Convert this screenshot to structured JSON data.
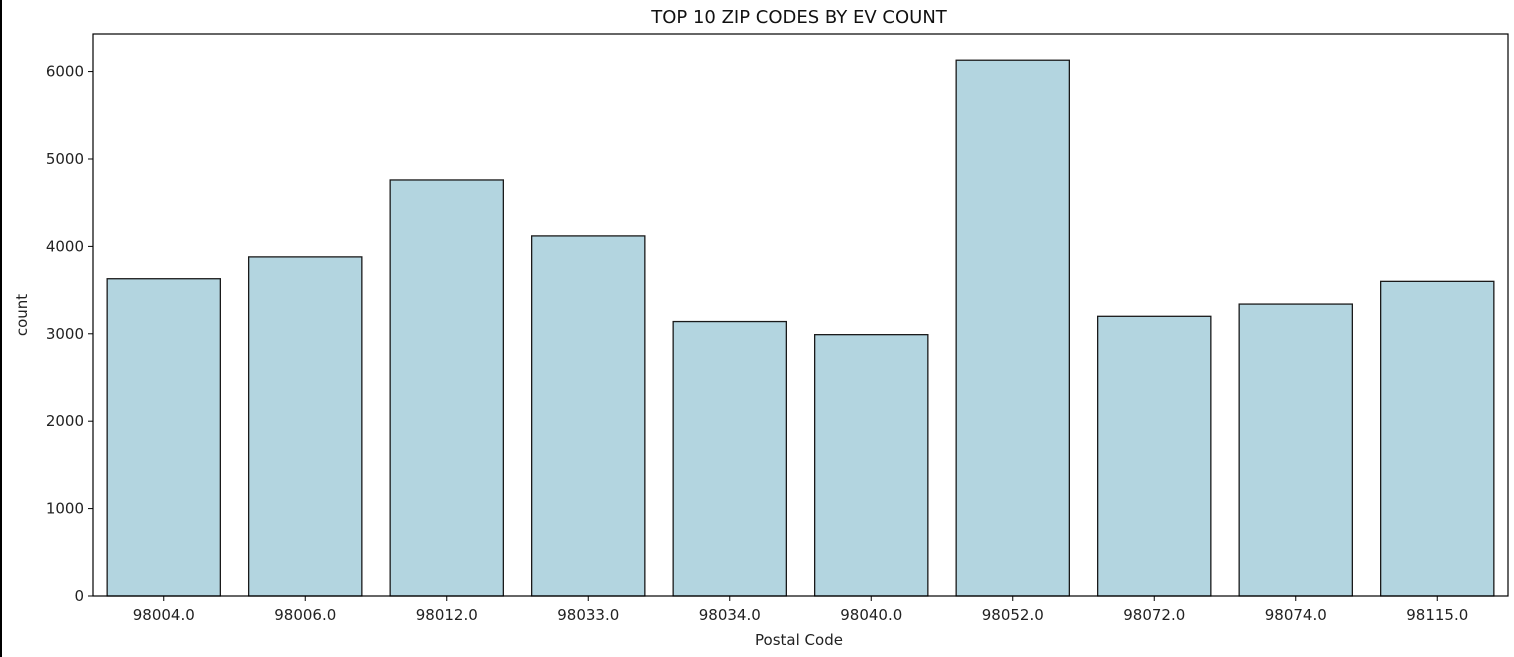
{
  "chart_data": {
    "type": "bar",
    "title": "TOP 10 ZIP CODES BY EV COUNT",
    "xlabel": "Postal Code",
    "ylabel": "count",
    "categories": [
      "98004.0",
      "98006.0",
      "98012.0",
      "98033.0",
      "98034.0",
      "98040.0",
      "98052.0",
      "98072.0",
      "98074.0",
      "98115.0"
    ],
    "values": [
      3630,
      3880,
      4760,
      4120,
      3140,
      2990,
      6130,
      3200,
      3340,
      3600
    ],
    "ylim": [
      0,
      6430
    ],
    "yticks": [
      0,
      1000,
      2000,
      3000,
      4000,
      5000,
      6000
    ],
    "grid": false,
    "legend": "none",
    "colors": {
      "bar_fill": "#b3d5e0",
      "bar_edge": "#1a1a1a"
    }
  }
}
